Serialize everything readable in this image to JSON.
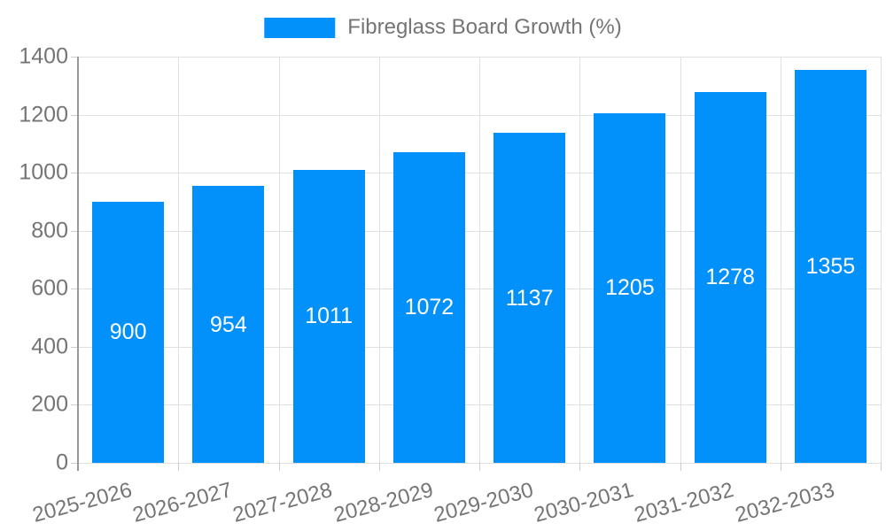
{
  "chart_data": {
    "type": "bar",
    "title": "Fibreglass Board Growth (%)",
    "legend": {
      "label": "Fibreglass Board Growth (%)",
      "position": "top"
    },
    "categories": [
      "2025-2026",
      "2026-2027",
      "2027-2028",
      "2028-2029",
      "2029-2030",
      "2030-2031",
      "2031-2032",
      "2032-2033"
    ],
    "values": [
      900,
      954,
      1011,
      1072,
      1137,
      1205,
      1278,
      1355
    ],
    "xlabel": "",
    "ylabel": "",
    "ylim": [
      0,
      1400
    ],
    "yticks": [
      0,
      200,
      400,
      600,
      800,
      1000,
      1200,
      1400
    ],
    "grid": true,
    "colors": {
      "bar": "#0290FA",
      "value_label": "#FFFFFF",
      "axis_text": "#757575",
      "grid_line": "#E0E0E0",
      "axis_line": "#999999",
      "tick_mark": "#CCCCCC"
    }
  }
}
